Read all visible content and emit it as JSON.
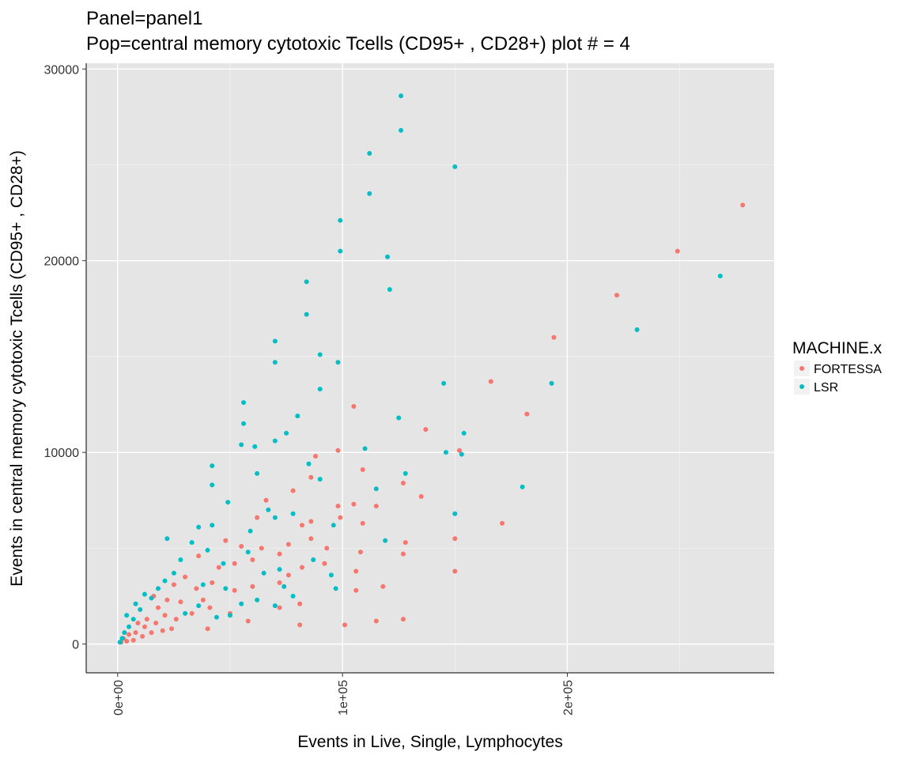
{
  "chart_data": {
    "type": "scatter",
    "title": "Panel=panel1",
    "subtitle": "Pop=central memory cytotoxic Tcells (CD95+ , CD28+) plot # = 4",
    "xlabel": "Events in Live, Single, Lymphocytes",
    "ylabel": "Events in central memory cytotoxic Tcells (CD95+ , CD28+)",
    "xlim": [
      -14000,
      292000
    ],
    "ylim": [
      -1500,
      30300
    ],
    "x_ticks": [
      {
        "value": 0,
        "label": "0e+00"
      },
      {
        "value": 100000,
        "label": "1e+05"
      },
      {
        "value": 200000,
        "label": "2e+05"
      }
    ],
    "y_ticks": [
      {
        "value": 0,
        "label": "0"
      },
      {
        "value": 10000,
        "label": "10000"
      },
      {
        "value": 20000,
        "label": "20000"
      },
      {
        "value": 30000,
        "label": "30000"
      }
    ],
    "grid": true,
    "legend": {
      "title": "MACHINE.x",
      "position": "right"
    },
    "series": [
      {
        "name": "FORTESSA",
        "color": "#F8766D",
        "points": [
          [
            278000,
            22900
          ],
          [
            249000,
            20500
          ],
          [
            222000,
            18200
          ],
          [
            194000,
            16000
          ],
          [
            182000,
            12000
          ],
          [
            166000,
            13700
          ],
          [
            152000,
            10100
          ],
          [
            137000,
            11200
          ],
          [
            135000,
            7700
          ],
          [
            171000,
            6300
          ],
          [
            150000,
            5500
          ],
          [
            150000,
            3800
          ],
          [
            127000,
            8400
          ],
          [
            128000,
            5300
          ],
          [
            127000,
            4700
          ],
          [
            127000,
            1300
          ],
          [
            118000,
            3000
          ],
          [
            115000,
            7200
          ],
          [
            115000,
            1200
          ],
          [
            109000,
            9100
          ],
          [
            109000,
            6300
          ],
          [
            108000,
            4800
          ],
          [
            105000,
            12400
          ],
          [
            105000,
            7300
          ],
          [
            106000,
            3800
          ],
          [
            106000,
            2800
          ],
          [
            101000,
            1000
          ],
          [
            98000,
            10100
          ],
          [
            98000,
            7200
          ],
          [
            99000,
            6600
          ],
          [
            93000,
            5000
          ],
          [
            92000,
            4200
          ],
          [
            88000,
            9800
          ],
          [
            86000,
            8700
          ],
          [
            86000,
            6400
          ],
          [
            86000,
            5500
          ],
          [
            82000,
            6200
          ],
          [
            82000,
            4000
          ],
          [
            81000,
            2100
          ],
          [
            81000,
            1000
          ],
          [
            78000,
            8000
          ],
          [
            76000,
            5200
          ],
          [
            76000,
            3600
          ],
          [
            72000,
            4700
          ],
          [
            72000,
            3200
          ],
          [
            72000,
            1900
          ],
          [
            66000,
            7500
          ],
          [
            64000,
            5000
          ],
          [
            62000,
            6600
          ],
          [
            60000,
            4400
          ],
          [
            60000,
            3000
          ],
          [
            58000,
            1200
          ],
          [
            55000,
            5100
          ],
          [
            52000,
            4200
          ],
          [
            52000,
            2800
          ],
          [
            50000,
            1600
          ],
          [
            48000,
            5400
          ],
          [
            45000,
            4000
          ],
          [
            42000,
            3200
          ],
          [
            41000,
            1900
          ],
          [
            40000,
            800
          ],
          [
            38000,
            2300
          ],
          [
            36000,
            4600
          ],
          [
            35000,
            2900
          ],
          [
            33000,
            1600
          ],
          [
            30000,
            3500
          ],
          [
            28000,
            2200
          ],
          [
            26000,
            1300
          ],
          [
            25000,
            3100
          ],
          [
            24000,
            800
          ],
          [
            22000,
            2300
          ],
          [
            21000,
            1500
          ],
          [
            20000,
            700
          ],
          [
            18000,
            1900
          ],
          [
            17000,
            1100
          ],
          [
            16000,
            2500
          ],
          [
            15000,
            600
          ],
          [
            13000,
            1300
          ],
          [
            12000,
            900
          ],
          [
            11000,
            400
          ],
          [
            9000,
            1100
          ],
          [
            8000,
            600
          ],
          [
            7000,
            200
          ],
          [
            5000,
            500
          ],
          [
            4000,
            150
          ],
          [
            2500,
            300
          ],
          [
            1500,
            100
          ]
        ]
      },
      {
        "name": "LSR",
        "color": "#00BFC4",
        "points": [
          [
            126000,
            28600
          ],
          [
            126000,
            26800
          ],
          [
            112000,
            25600
          ],
          [
            112000,
            23500
          ],
          [
            150000,
            24900
          ],
          [
            99000,
            22100
          ],
          [
            99000,
            20500
          ],
          [
            120000,
            20200
          ],
          [
            121000,
            18500
          ],
          [
            84000,
            18900
          ],
          [
            84000,
            17200
          ],
          [
            268000,
            19200
          ],
          [
            231000,
            16400
          ],
          [
            70000,
            15800
          ],
          [
            70000,
            14700
          ],
          [
            90000,
            15100
          ],
          [
            98000,
            14700
          ],
          [
            90000,
            13300
          ],
          [
            145000,
            13600
          ],
          [
            193000,
            13600
          ],
          [
            56000,
            12600
          ],
          [
            56000,
            11500
          ],
          [
            80000,
            11900
          ],
          [
            75000,
            11000
          ],
          [
            125000,
            11800
          ],
          [
            154000,
            11000
          ],
          [
            153000,
            9900
          ],
          [
            146000,
            10000
          ],
          [
            110000,
            10200
          ],
          [
            115000,
            8100
          ],
          [
            128000,
            8900
          ],
          [
            55000,
            10400
          ],
          [
            61000,
            10300
          ],
          [
            70000,
            10600
          ],
          [
            62000,
            8900
          ],
          [
            85000,
            9400
          ],
          [
            90000,
            8600
          ],
          [
            180000,
            8200
          ],
          [
            42000,
            9300
          ],
          [
            42000,
            8300
          ],
          [
            49000,
            7400
          ],
          [
            42000,
            6200
          ],
          [
            59000,
            5900
          ],
          [
            67000,
            7000
          ],
          [
            70000,
            6600
          ],
          [
            78000,
            6800
          ],
          [
            150000,
            6800
          ],
          [
            96000,
            6200
          ],
          [
            119000,
            5400
          ],
          [
            36000,
            6100
          ],
          [
            33000,
            5300
          ],
          [
            40000,
            4900
          ],
          [
            47000,
            4200
          ],
          [
            58000,
            4800
          ],
          [
            65000,
            3700
          ],
          [
            72000,
            3900
          ],
          [
            87000,
            4400
          ],
          [
            95000,
            3600
          ],
          [
            97000,
            2900
          ],
          [
            62000,
            2300
          ],
          [
            70000,
            2000
          ],
          [
            74000,
            3000
          ],
          [
            78000,
            2500
          ],
          [
            28000,
            4400
          ],
          [
            25000,
            3700
          ],
          [
            22000,
            5500
          ],
          [
            21000,
            3300
          ],
          [
            18000,
            2900
          ],
          [
            15000,
            2400
          ],
          [
            12000,
            2600
          ],
          [
            10000,
            1800
          ],
          [
            8000,
            2100
          ],
          [
            7000,
            1300
          ],
          [
            5000,
            900
          ],
          [
            4000,
            1500
          ],
          [
            3000,
            600
          ],
          [
            2000,
            300
          ],
          [
            1000,
            100
          ],
          [
            30000,
            1600
          ],
          [
            36000,
            2000
          ],
          [
            44000,
            1400
          ],
          [
            50000,
            1500
          ],
          [
            55000,
            2100
          ],
          [
            38000,
            3100
          ],
          [
            48000,
            2900
          ]
        ]
      }
    ]
  }
}
